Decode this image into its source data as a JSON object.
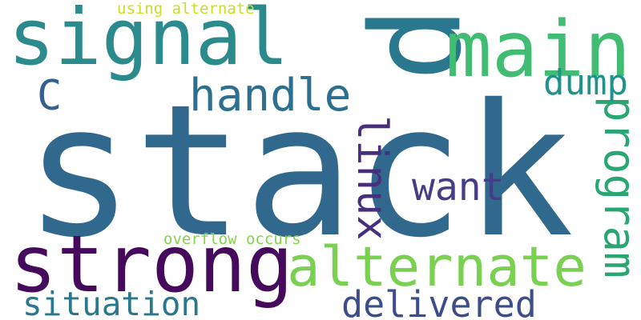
{
  "words": [
    {
      "id": "stack",
      "text": "stack",
      "color": "#30698d"
    },
    {
      "id": "p",
      "text": "p",
      "color": "#2a788e"
    },
    {
      "id": "signal",
      "text": "signal",
      "color": "#2b8a8c"
    },
    {
      "id": "main",
      "text": "main",
      "color": "#40bd72"
    },
    {
      "id": "strong",
      "text": "strong",
      "color": "#460a5d"
    },
    {
      "id": "alternate",
      "text": "alternate",
      "color": "#7ad151"
    },
    {
      "id": "program",
      "text": "program",
      "color": "#2aa672"
    },
    {
      "id": "handle",
      "text": "handle",
      "color": "#2d6f8e"
    },
    {
      "id": "linux",
      "text": "linux",
      "color": "#472f7d"
    },
    {
      "id": "want",
      "text": "want",
      "color": "#433e85"
    },
    {
      "id": "dump",
      "text": "dump",
      "color": "#21918c"
    },
    {
      "id": "c",
      "text": "C",
      "color": "#355f8d"
    },
    {
      "id": "situation",
      "text": "situation",
      "color": "#2a788e"
    },
    {
      "id": "delivered",
      "text": "delivered",
      "color": "#3d4d8a"
    },
    {
      "id": "using-alternate",
      "text": "using alternate",
      "color": "#c8e020"
    },
    {
      "id": "overflow-occurs",
      "text": "overflow occurs",
      "color": "#84d44b"
    }
  ]
}
